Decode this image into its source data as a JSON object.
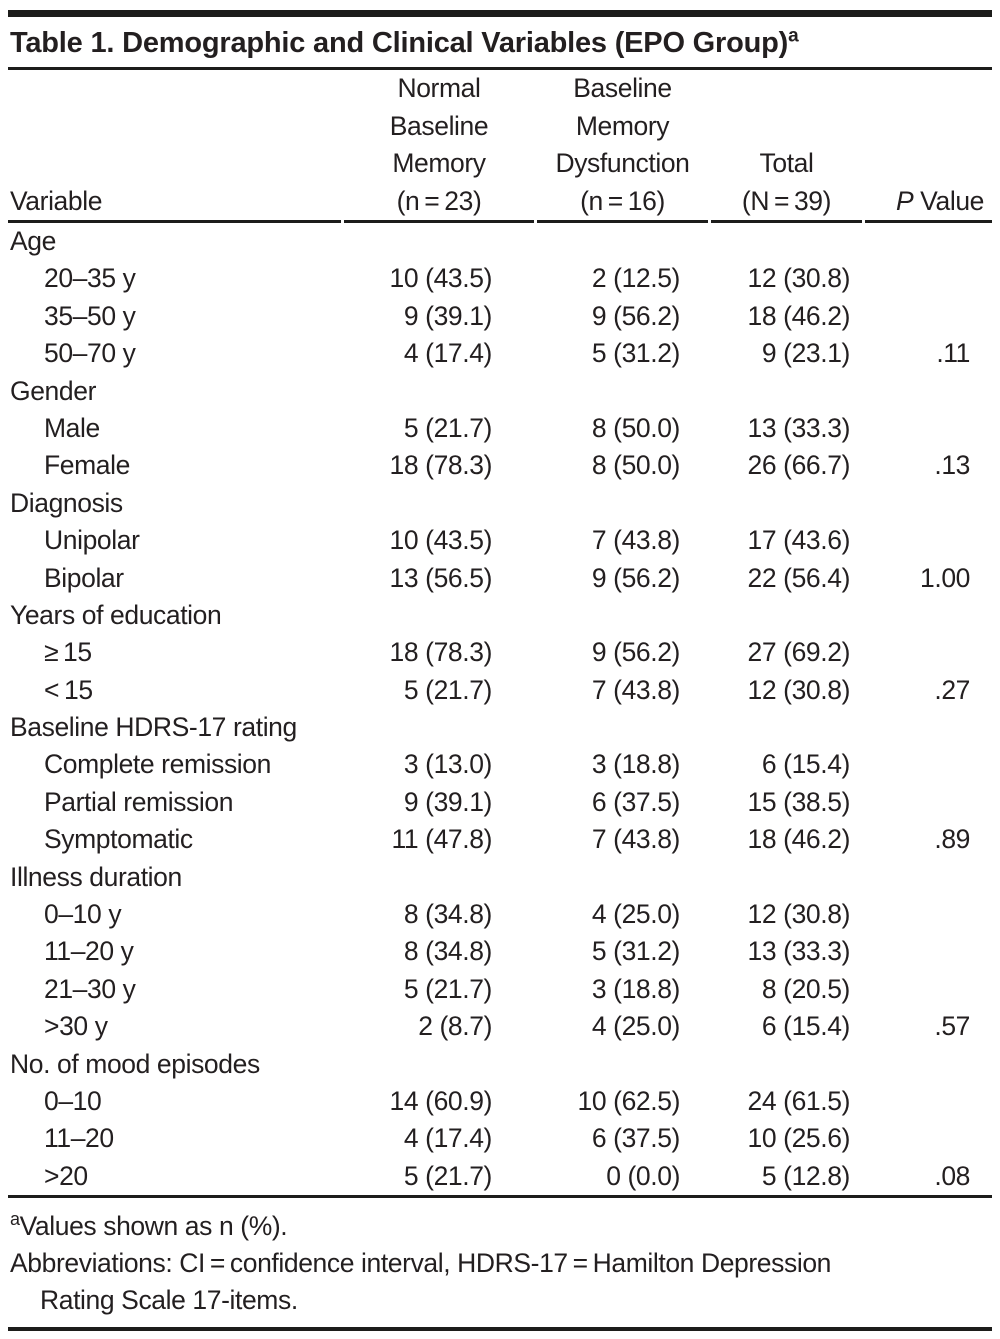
{
  "title": {
    "label": "Table 1. Demographic and Clinical Variables (EPO Group)",
    "superscript": "a"
  },
  "header": {
    "columns": [
      {
        "id": "variable",
        "align": "left",
        "lines": [
          "Variable"
        ]
      },
      {
        "id": "normal-baseline-memory",
        "align": "center",
        "lines": [
          "Normal",
          "Baseline",
          "Memory",
          "(n = 23)"
        ]
      },
      {
        "id": "baseline-memory-dysfunction",
        "align": "center",
        "lines": [
          "Baseline",
          "Memory",
          "Dysfunction",
          "(n = 16)"
        ]
      },
      {
        "id": "total",
        "align": "center",
        "lines": [
          "Total",
          "(N = 39)"
        ]
      },
      {
        "id": "p-value",
        "align": "right",
        "italic_first_letter": true,
        "lines": [
          "P Value"
        ]
      }
    ]
  },
  "table": {
    "rows": [
      {
        "type": "category",
        "label": "Age"
      },
      {
        "type": "data",
        "label": "20–35 y",
        "values": [
          "10 (43.5)",
          "2 (12.5)",
          "12 (30.8)",
          ""
        ]
      },
      {
        "type": "data",
        "label": "35–50 y",
        "values": [
          "9 (39.1)",
          "9 (56.2)",
          "18 (46.2)",
          ""
        ]
      },
      {
        "type": "data",
        "label": "50–70 y",
        "values": [
          "4 (17.4)",
          "5 (31.2)",
          "9 (23.1)",
          ".11"
        ]
      },
      {
        "type": "category",
        "label": "Gender"
      },
      {
        "type": "data",
        "label": "Male",
        "values": [
          "5 (21.7)",
          "8 (50.0)",
          "13 (33.3)",
          ""
        ]
      },
      {
        "type": "data",
        "label": "Female",
        "values": [
          "18 (78.3)",
          "8 (50.0)",
          "26 (66.7)",
          ".13"
        ]
      },
      {
        "type": "category",
        "label": "Diagnosis"
      },
      {
        "type": "data",
        "label": "Unipolar",
        "values": [
          "10 (43.5)",
          "7 (43.8)",
          "17 (43.6)",
          ""
        ]
      },
      {
        "type": "data",
        "label": "Bipolar",
        "values": [
          "13 (56.5)",
          "9 (56.2)",
          "22 (56.4)",
          "1.00"
        ]
      },
      {
        "type": "category",
        "label": "Years of education"
      },
      {
        "type": "data",
        "label": "≥ 15",
        "values": [
          "18 (78.3)",
          "9 (56.2)",
          "27 (69.2)",
          ""
        ]
      },
      {
        "type": "data",
        "label": "< 15",
        "values": [
          "5 (21.7)",
          "7 (43.8)",
          "12 (30.8)",
          ".27"
        ]
      },
      {
        "type": "category",
        "label": "Baseline HDRS-17 rating"
      },
      {
        "type": "data",
        "label": "Complete remission",
        "values": [
          "3 (13.0)",
          "3 (18.8)",
          "6 (15.4)",
          ""
        ]
      },
      {
        "type": "data",
        "label": "Partial remission",
        "values": [
          "9 (39.1)",
          "6 (37.5)",
          "15 (38.5)",
          ""
        ]
      },
      {
        "type": "data",
        "label": "Symptomatic",
        "values": [
          "11 (47.8)",
          "7 (43.8)",
          "18 (46.2)",
          ".89"
        ]
      },
      {
        "type": "category",
        "label": "Illness duration"
      },
      {
        "type": "data",
        "label": "0–10 y",
        "values": [
          "8 (34.8)",
          "4 (25.0)",
          "12 (30.8)",
          ""
        ]
      },
      {
        "type": "data",
        "label": "11–20 y",
        "values": [
          "8 (34.8)",
          "5 (31.2)",
          "13 (33.3)",
          ""
        ]
      },
      {
        "type": "data",
        "label": "21–30 y",
        "values": [
          "5 (21.7)",
          "3 (18.8)",
          "8 (20.5)",
          ""
        ]
      },
      {
        "type": "data",
        "label": ">30 y",
        "values": [
          "2 (8.7)",
          "4 (25.0)",
          "6 (15.4)",
          ".57"
        ]
      },
      {
        "type": "category",
        "label": "No. of mood episodes"
      },
      {
        "type": "data",
        "label": "0–10",
        "values": [
          "14 (60.9)",
          "10 (62.5)",
          "24 (61.5)",
          ""
        ]
      },
      {
        "type": "data",
        "label": "11–20",
        "values": [
          "4 (17.4)",
          "6 (37.5)",
          "10 (25.6)",
          ""
        ]
      },
      {
        "type": "data",
        "label": ">20",
        "values": [
          "5 (21.7)",
          "0 (0.0)",
          "5 (12.8)",
          ".08"
        ]
      }
    ]
  },
  "footnotes": {
    "note_a": {
      "superscript": "a",
      "text": "Values shown as n (%)."
    },
    "abbreviations": {
      "lines": [
        "Abbreviations: CI = confidence interval, HDRS-17 = Hamilton Depression",
        "Rating Scale 17-items."
      ]
    }
  },
  "colors": {
    "text": "#231f20",
    "rule": "#1d1d1b",
    "background": "#ffffff"
  }
}
